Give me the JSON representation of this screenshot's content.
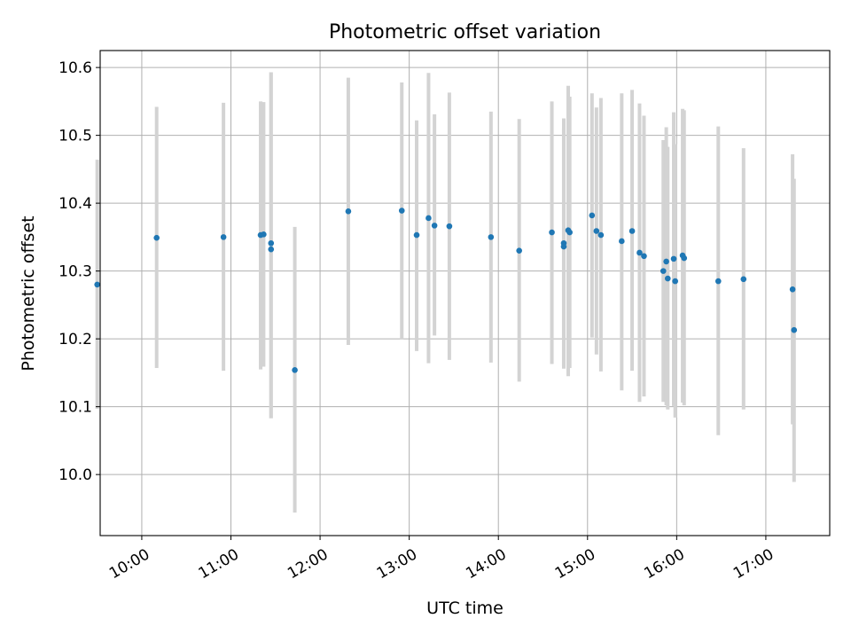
{
  "chart_data": {
    "type": "scatter",
    "title": "Photometric offset variation",
    "xlabel": "UTC time",
    "ylabel": "Photometric offset",
    "x_is_time": true,
    "xlim": [
      "09:32",
      "17:43"
    ],
    "ylim": [
      9.91,
      10.625
    ],
    "xticks": [
      "10:00",
      "11:00",
      "12:00",
      "13:00",
      "14:00",
      "15:00",
      "16:00",
      "17:00"
    ],
    "yticks": [
      "10.0",
      "10.1",
      "10.2",
      "10.3",
      "10.4",
      "10.5",
      "10.6"
    ],
    "grid": true,
    "colors": {
      "points": "#1f77b4",
      "errorbars": "#d3d3d3",
      "grid": "#b0b0b0"
    },
    "points": [
      {
        "x": "09:30",
        "y": 10.28,
        "ylow": 10.097,
        "yhigh": 10.464
      },
      {
        "x": "10:10",
        "y": 10.349,
        "ylow": 10.157,
        "yhigh": 10.542
      },
      {
        "x": "10:55",
        "y": 10.35,
        "ylow": 10.153,
        "yhigh": 10.548
      },
      {
        "x": "11:20",
        "y": 10.353,
        "ylow": 10.155,
        "yhigh": 10.55
      },
      {
        "x": "11:22",
        "y": 10.354,
        "ylow": 10.159,
        "yhigh": 10.549
      },
      {
        "x": "11:27",
        "y": 10.341,
        "ylow": 10.083,
        "yhigh": 10.593
      },
      {
        "x": "11:27",
        "y": 10.332,
        "ylow": 10.083,
        "yhigh": 10.593
      },
      {
        "x": "11:43",
        "y": 10.154,
        "ylow": 9.944,
        "yhigh": 10.365
      },
      {
        "x": "12:19",
        "y": 10.388,
        "ylow": 10.191,
        "yhigh": 10.585
      },
      {
        "x": "12:55",
        "y": 10.389,
        "ylow": 10.199,
        "yhigh": 10.578
      },
      {
        "x": "13:05",
        "y": 10.353,
        "ylow": 10.182,
        "yhigh": 10.522
      },
      {
        "x": "13:13",
        "y": 10.378,
        "ylow": 10.164,
        "yhigh": 10.592
      },
      {
        "x": "13:17",
        "y": 10.367,
        "ylow": 10.205,
        "yhigh": 10.531
      },
      {
        "x": "13:27",
        "y": 10.366,
        "ylow": 10.169,
        "yhigh": 10.563
      },
      {
        "x": "13:55",
        "y": 10.35,
        "ylow": 10.165,
        "yhigh": 10.535
      },
      {
        "x": "14:14",
        "y": 10.33,
        "ylow": 10.137,
        "yhigh": 10.524
      },
      {
        "x": "14:36",
        "y": 10.357,
        "ylow": 10.163,
        "yhigh": 10.55
      },
      {
        "x": "14:44",
        "y": 10.341,
        "ylow": 10.156,
        "yhigh": 10.525
      },
      {
        "x": "14:44",
        "y": 10.336,
        "ylow": 10.16,
        "yhigh": 10.51
      },
      {
        "x": "14:47",
        "y": 10.36,
        "ylow": 10.145,
        "yhigh": 10.573
      },
      {
        "x": "14:48",
        "y": 10.357,
        "ylow": 10.157,
        "yhigh": 10.557
      },
      {
        "x": "15:03",
        "y": 10.382,
        "ylow": 10.202,
        "yhigh": 10.562
      },
      {
        "x": "15:06",
        "y": 10.359,
        "ylow": 10.177,
        "yhigh": 10.541
      },
      {
        "x": "15:09",
        "y": 10.353,
        "ylow": 10.152,
        "yhigh": 10.555
      },
      {
        "x": "15:23",
        "y": 10.344,
        "ylow": 10.124,
        "yhigh": 10.562
      },
      {
        "x": "15:30",
        "y": 10.359,
        "ylow": 10.153,
        "yhigh": 10.567
      },
      {
        "x": "15:35",
        "y": 10.327,
        "ylow": 10.107,
        "yhigh": 10.547
      },
      {
        "x": "15:38",
        "y": 10.322,
        "ylow": 10.115,
        "yhigh": 10.529
      },
      {
        "x": "15:51",
        "y": 10.3,
        "ylow": 10.107,
        "yhigh": 10.493
      },
      {
        "x": "15:53",
        "y": 10.314,
        "ylow": 10.102,
        "yhigh": 10.512
      },
      {
        "x": "15:54",
        "y": 10.289,
        "ylow": 10.096,
        "yhigh": 10.483
      },
      {
        "x": "15:58",
        "y": 10.318,
        "ylow": 10.101,
        "yhigh": 10.534
      },
      {
        "x": "15:59",
        "y": 10.285,
        "ylow": 10.084,
        "yhigh": 10.487
      },
      {
        "x": "16:04",
        "y": 10.323,
        "ylow": 10.106,
        "yhigh": 10.539
      },
      {
        "x": "16:05",
        "y": 10.319,
        "ylow": 10.102,
        "yhigh": 10.537
      },
      {
        "x": "16:28",
        "y": 10.285,
        "ylow": 10.058,
        "yhigh": 10.513
      },
      {
        "x": "16:45",
        "y": 10.288,
        "ylow": 10.096,
        "yhigh": 10.481
      },
      {
        "x": "17:18",
        "y": 10.273,
        "ylow": 10.074,
        "yhigh": 10.472
      },
      {
        "x": "17:19",
        "y": 10.213,
        "ylow": 9.989,
        "yhigh": 10.436
      }
    ]
  }
}
